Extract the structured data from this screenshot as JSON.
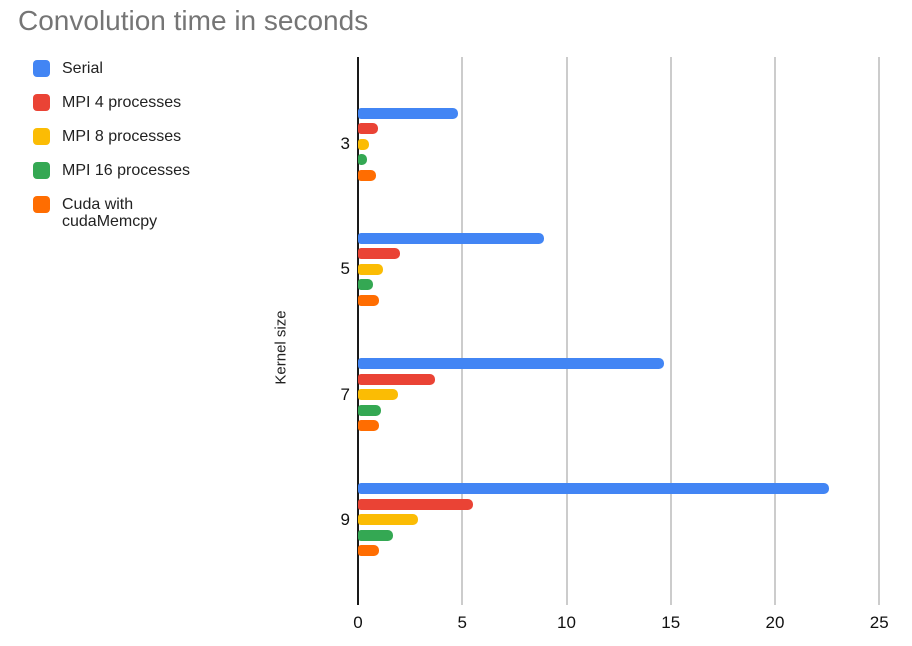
{
  "chart_data": {
    "type": "bar",
    "orientation": "horizontal",
    "title": "Convolution time in seconds",
    "xlabel": "",
    "ylabel": "Kernel size",
    "categories": [
      "3",
      "5",
      "7",
      "9"
    ],
    "series": [
      {
        "name": "Serial",
        "color": "#4285F4",
        "values": [
          4.8,
          8.9,
          14.7,
          22.6
        ]
      },
      {
        "name": "MPI 4 processes",
        "color": "#EA4335",
        "values": [
          0.95,
          2.0,
          3.7,
          5.5
        ]
      },
      {
        "name": "MPI 8 processes",
        "color": "#FBBC04",
        "values": [
          0.55,
          1.2,
          1.9,
          2.9
        ]
      },
      {
        "name": "MPI 16 processes",
        "color": "#34A853",
        "values": [
          0.45,
          0.7,
          1.1,
          1.7
        ]
      },
      {
        "name": "Cuda with cudaMemcpy",
        "color": "#FF6D01",
        "values": [
          0.85,
          1.0,
          1.0,
          1.0
        ]
      }
    ],
    "x_ticks": [
      0,
      5,
      10,
      15,
      20,
      25
    ],
    "xlim": [
      0,
      26.5
    ],
    "grid": true,
    "legend_position": "top-left",
    "axis_color": "#1a1a1a",
    "gridline_color": "#cccccc",
    "title_color": "#757575"
  }
}
